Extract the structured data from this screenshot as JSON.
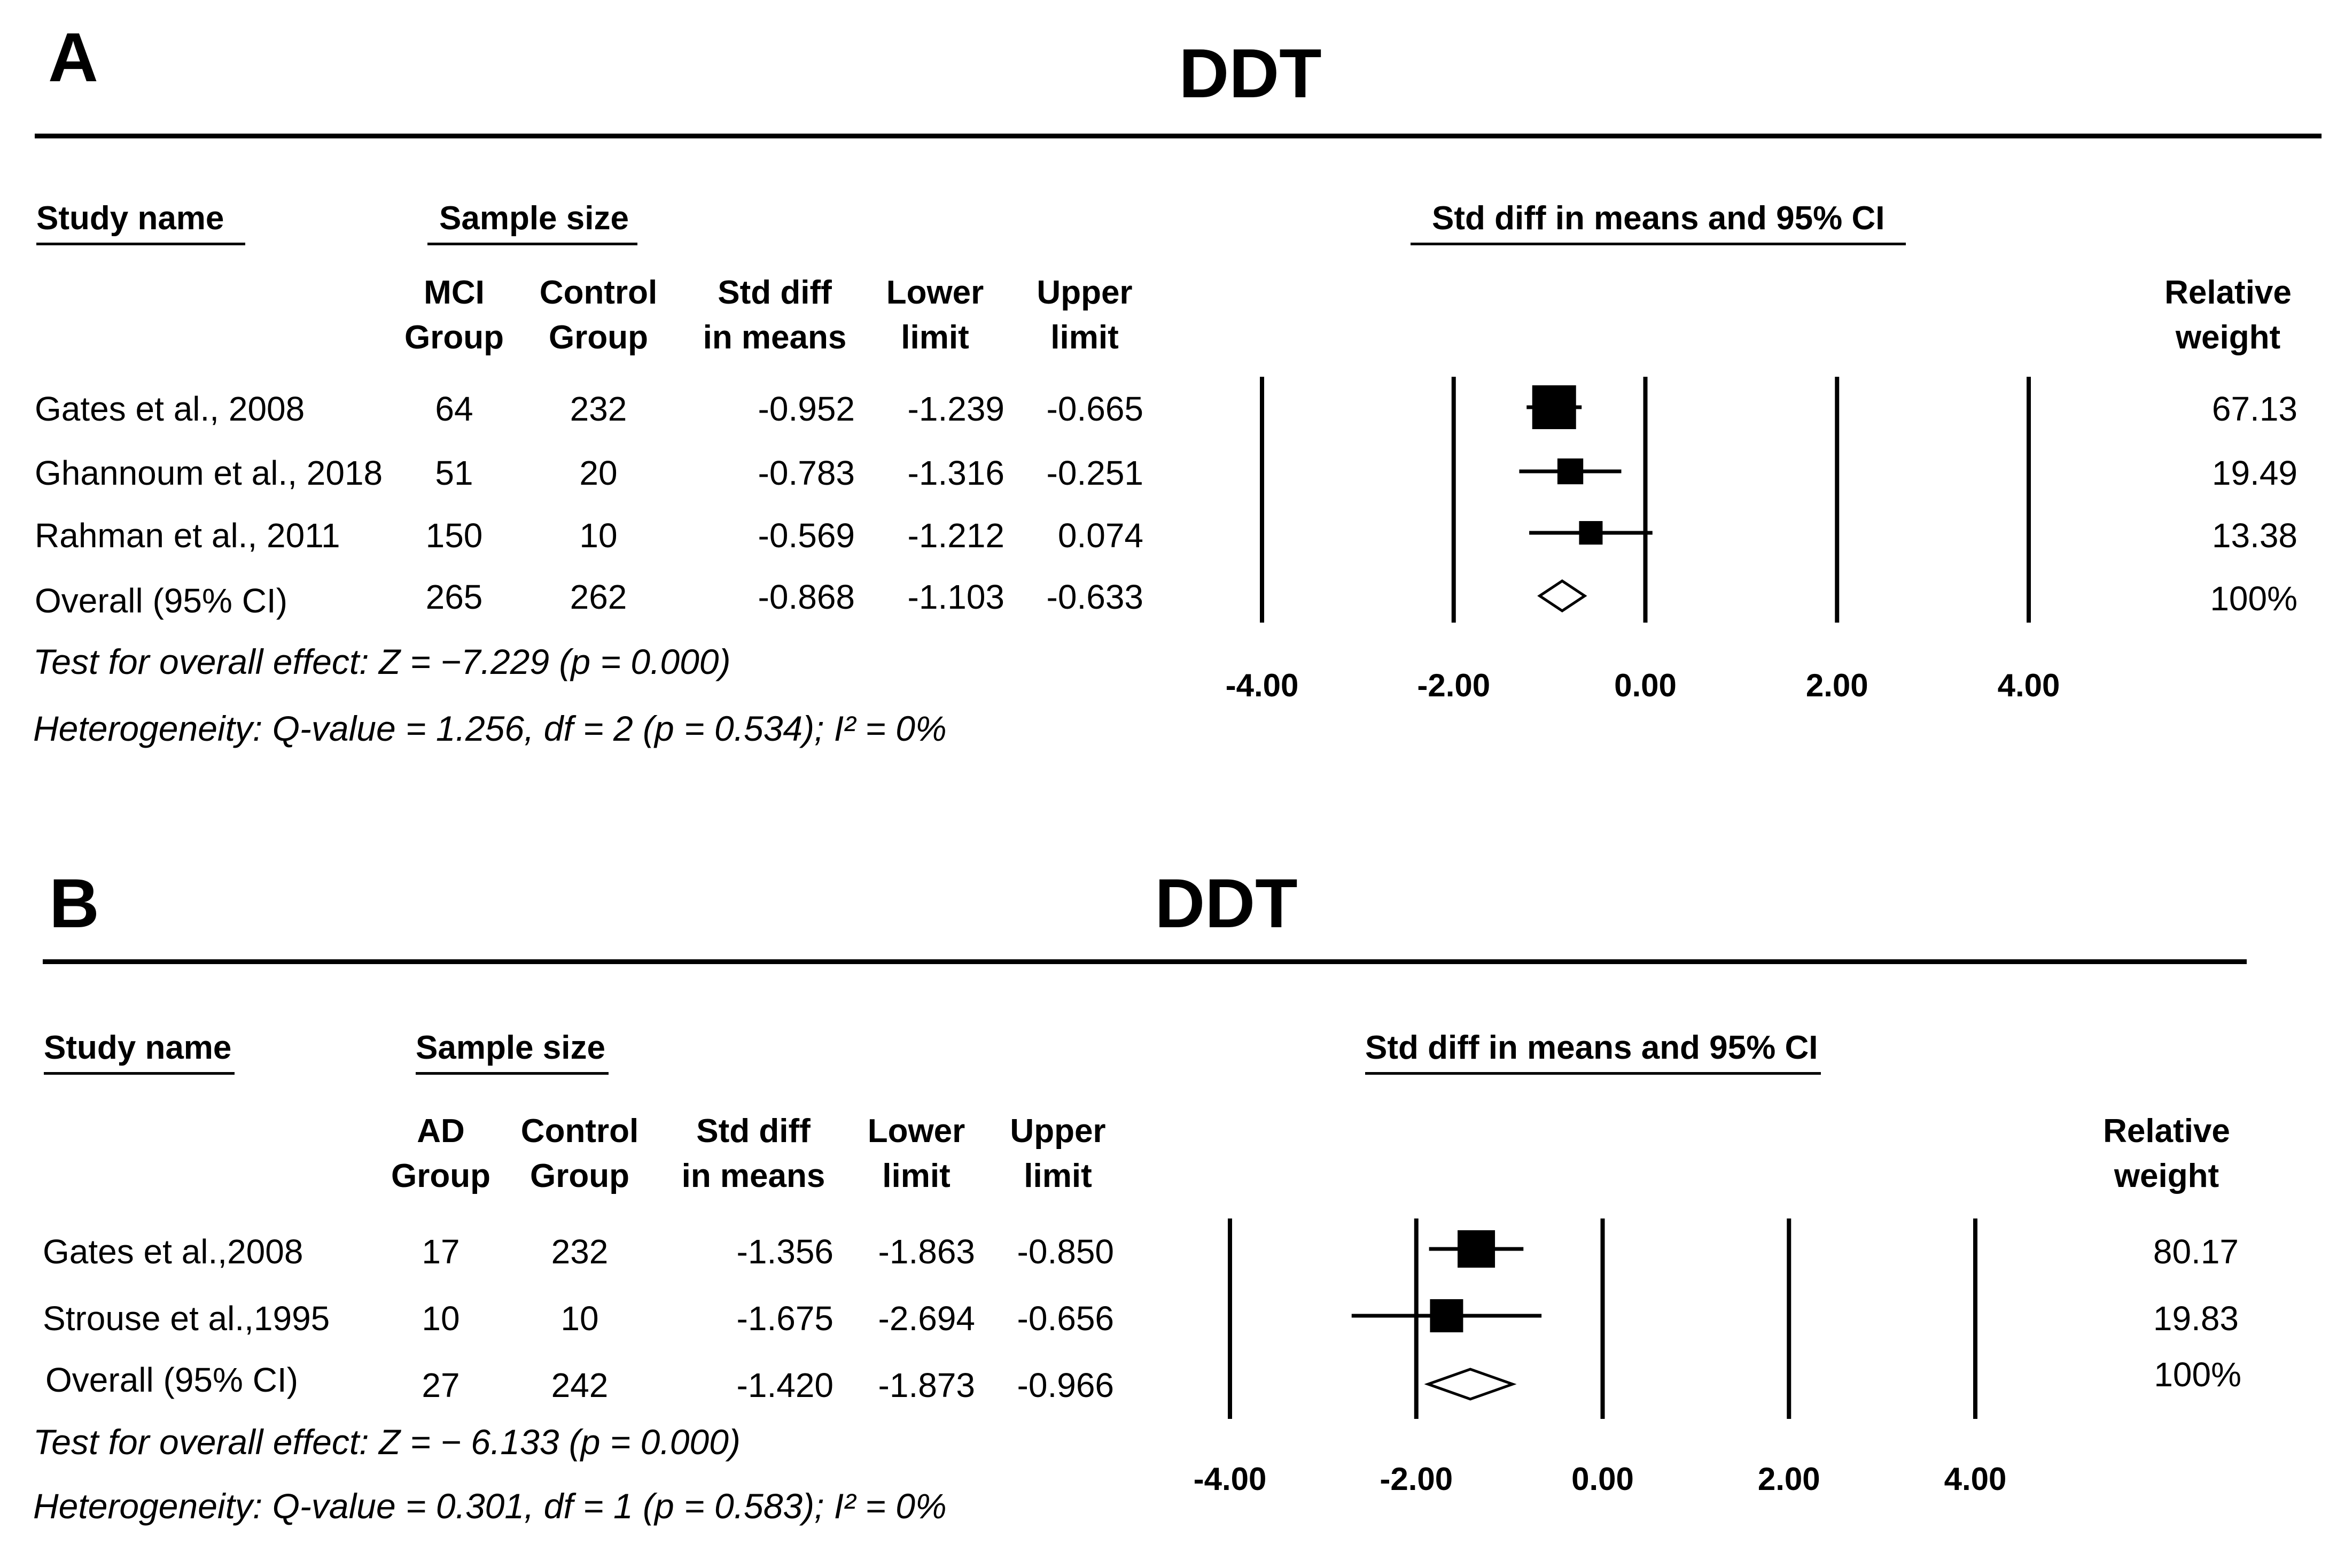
{
  "chart_data": [
    {
      "type": "forest",
      "panel_label": "A",
      "title": "DDT",
      "headers": {
        "study_name": "Study name",
        "sample_size": "Sample size",
        "ci": "Std diff in means and 95% CI",
        "group1": [
          "MCI",
          "Group"
        ],
        "group2": [
          "Control",
          "Group"
        ],
        "std_diff": [
          "Std diff",
          "in means"
        ],
        "lower": [
          "Lower",
          "limit"
        ],
        "upper": [
          "Upper",
          "limit"
        ],
        "weight": [
          "Relative",
          "weight"
        ]
      },
      "rows": [
        {
          "study": "Gates et al., 2008",
          "n1": "64",
          "n2": "232",
          "std_diff": -0.952,
          "lower": -1.239,
          "upper": -0.665,
          "weight": "67.13",
          "overall": false
        },
        {
          "study": "Ghannoum et al., 2018",
          "n1": "51",
          "n2": "20",
          "std_diff": -0.783,
          "lower": -1.316,
          "upper": -0.251,
          "weight": "19.49",
          "overall": false
        },
        {
          "study": "Rahman et al., 2011",
          "n1": "150",
          "n2": "10",
          "std_diff": -0.569,
          "lower": -1.212,
          "upper": 0.074,
          "weight": "13.38",
          "overall": false
        },
        {
          "study": "Overall (95% CI)",
          "n1": "265",
          "n2": "262",
          "std_diff": -0.868,
          "lower": -1.103,
          "upper": -0.633,
          "weight": "100%",
          "overall": true
        }
      ],
      "xlim": [
        -4,
        4
      ],
      "xticks": [
        "-4.00",
        "-2.00",
        "0.00",
        "2.00",
        "4.00"
      ],
      "test_overall": "Test for overall effect: Z = −7.229 (p = 0.000)",
      "heterogeneity": "Heterogeneity: Q-value = 1.256, df = 2 (p = 0.534); I² = 0%"
    },
    {
      "type": "forest",
      "panel_label": "B",
      "title": "DDT",
      "headers": {
        "study_name": "Study name",
        "sample_size": "Sample size",
        "ci": "Std diff in means and 95% CI",
        "group1": [
          "AD",
          "Group"
        ],
        "group2": [
          "Control",
          "Group"
        ],
        "std_diff": [
          "Std diff",
          "in means"
        ],
        "lower": [
          "Lower",
          "limit"
        ],
        "upper": [
          "Upper",
          "limit"
        ],
        "weight": [
          "Relative",
          "weight"
        ]
      },
      "rows": [
        {
          "study": "Gates et al.,2008",
          "n1": "17",
          "n2": "232",
          "std_diff": -1.356,
          "lower": -1.863,
          "upper": -0.85,
          "weight": "80.17",
          "overall": false
        },
        {
          "study": "Strouse et al.,1995",
          "n1": "10",
          "n2": "10",
          "std_diff": -1.675,
          "lower": -2.694,
          "upper": -0.656,
          "weight": "19.83",
          "overall": false
        },
        {
          "study": "Overall (95% CI)",
          "n1": "27",
          "n2": "242",
          "std_diff": -1.42,
          "lower": -1.873,
          "upper": -0.966,
          "weight": "100%",
          "overall": true
        }
      ],
      "xlim": [
        -4,
        4
      ],
      "xticks": [
        "-4.00",
        "-2.00",
        "0.00",
        "2.00",
        "4.00"
      ],
      "test_overall": "Test for overall effect: Z = − 6.133 (p = 0.000)",
      "heterogeneity": "Heterogeneity: Q-value = 0.301, df = 1 (p = 0.583); I² = 0%"
    }
  ]
}
